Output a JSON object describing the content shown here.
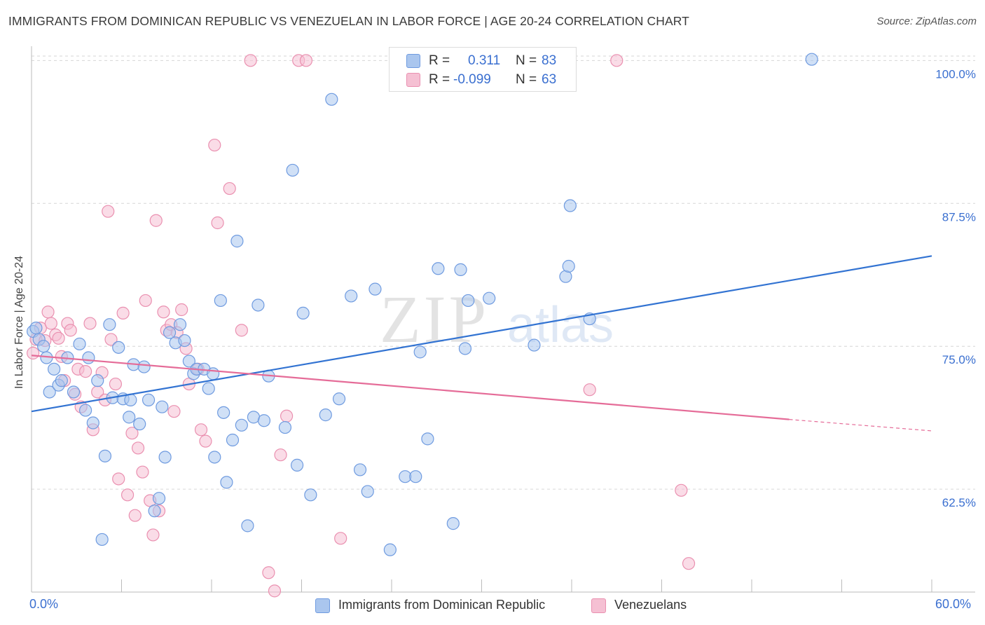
{
  "title": "IMMIGRANTS FROM DOMINICAN REPUBLIC VS VENEZUELAN IN LABOR FORCE | AGE 20-24 CORRELATION CHART",
  "source": "Source: ZipAtlas.com",
  "watermark": {
    "zip": "ZIP",
    "atlas": "atlas"
  },
  "legend": {
    "series1": {
      "r_label": "R =",
      "r_value": "0.311",
      "n_label": "N =",
      "n_value": "83"
    },
    "series2": {
      "r_label": "R =",
      "r_value": "-0.099",
      "n_label": "N =",
      "n_value": "63"
    }
  },
  "bottom_legend": {
    "series1": "Immigrants from Dominican Republic",
    "series2": "Venezuelans"
  },
  "x_axis": {
    "min_label": "0.0%",
    "max_label": "60.0%"
  },
  "colors": {
    "blue_fill": "#aac6ee",
    "blue_stroke": "#6f9be0",
    "blue_line": "#3273d2",
    "pink_fill": "#f5c0d3",
    "pink_stroke": "#ea90b0",
    "pink_line": "#e56c98",
    "axis_text": "#3a6fd0",
    "grid": "#d6d6d6"
  },
  "chart_data": {
    "type": "scatter",
    "title": "IMMIGRANTS FROM DOMINICAN REPUBLIC VS VENEZUELAN IN LABOR FORCE | AGE 20-24 CORRELATION CHART",
    "xlabel": "",
    "ylabel": "In Labor Force | Age 20-24",
    "xlim": [
      0,
      60
    ],
    "ylim": [
      53.5,
      101
    ],
    "y_ticks": [
      {
        "value": 62.5,
        "label": "62.5%"
      },
      {
        "value": 75.0,
        "label": "75.0%"
      },
      {
        "value": 87.5,
        "label": "87.5%"
      },
      {
        "value": 100.0,
        "label": "100.0%"
      }
    ],
    "series": [
      {
        "name": "Immigrants from Dominican Republic",
        "r": 0.311,
        "n": 83,
        "trend": {
          "x0": 0,
          "y0": 69.3,
          "x1": 60,
          "y1": 82.9
        },
        "points": [
          [
            0.1,
            76.3
          ],
          [
            0.3,
            76.6
          ],
          [
            0.5,
            75.6
          ],
          [
            0.8,
            75.0
          ],
          [
            1.0,
            74.0
          ],
          [
            1.2,
            71.0
          ],
          [
            1.5,
            73.0
          ],
          [
            1.8,
            71.6
          ],
          [
            2.0,
            72.0
          ],
          [
            2.4,
            74.0
          ],
          [
            2.8,
            71.0
          ],
          [
            3.2,
            75.2
          ],
          [
            3.6,
            69.4
          ],
          [
            3.8,
            74.0
          ],
          [
            4.1,
            68.3
          ],
          [
            4.4,
            72.0
          ],
          [
            4.7,
            58.1
          ],
          [
            4.9,
            65.4
          ],
          [
            5.2,
            76.9
          ],
          [
            5.4,
            70.5
          ],
          [
            5.8,
            74.9
          ],
          [
            6.1,
            70.4
          ],
          [
            6.5,
            68.8
          ],
          [
            6.6,
            70.3
          ],
          [
            6.8,
            73.4
          ],
          [
            7.2,
            68.2
          ],
          [
            7.5,
            73.2
          ],
          [
            7.8,
            70.3
          ],
          [
            8.2,
            60.6
          ],
          [
            8.5,
            61.7
          ],
          [
            8.7,
            69.7
          ],
          [
            8.9,
            65.3
          ],
          [
            9.2,
            76.2
          ],
          [
            9.6,
            75.3
          ],
          [
            9.9,
            76.9
          ],
          [
            10.2,
            75.5
          ],
          [
            10.5,
            73.7
          ],
          [
            10.8,
            72.6
          ],
          [
            11.0,
            73.0
          ],
          [
            11.5,
            73.0
          ],
          [
            11.8,
            71.3
          ],
          [
            12.1,
            72.6
          ],
          [
            12.2,
            65.3
          ],
          [
            12.6,
            79.0
          ],
          [
            12.8,
            69.2
          ],
          [
            13.0,
            63.1
          ],
          [
            13.4,
            66.8
          ],
          [
            13.7,
            84.2
          ],
          [
            14.0,
            68.1
          ],
          [
            14.4,
            59.3
          ],
          [
            14.8,
            68.8
          ],
          [
            15.1,
            78.6
          ],
          [
            15.5,
            68.5
          ],
          [
            15.8,
            72.4
          ],
          [
            16.9,
            67.9
          ],
          [
            17.4,
            90.4
          ],
          [
            17.7,
            64.6
          ],
          [
            18.1,
            77.9
          ],
          [
            18.6,
            62.0
          ],
          [
            19.6,
            69.0
          ],
          [
            20.0,
            96.6
          ],
          [
            20.5,
            70.4
          ],
          [
            21.3,
            79.4
          ],
          [
            21.9,
            64.2
          ],
          [
            22.4,
            62.3
          ],
          [
            22.9,
            80.0
          ],
          [
            23.9,
            57.2
          ],
          [
            24.9,
            63.6
          ],
          [
            25.6,
            63.6
          ],
          [
            25.9,
            74.5
          ],
          [
            26.4,
            66.9
          ],
          [
            27.1,
            81.8
          ],
          [
            28.1,
            59.5
          ],
          [
            28.6,
            81.7
          ],
          [
            28.9,
            74.8
          ],
          [
            29.1,
            79.0
          ],
          [
            30.5,
            79.2
          ],
          [
            33.5,
            75.1
          ],
          [
            35.6,
            81.1
          ],
          [
            35.8,
            82.0
          ],
          [
            35.9,
            87.3
          ],
          [
            37.2,
            77.4
          ],
          [
            52.0,
            100.1
          ]
        ]
      },
      {
        "name": "Venezuelans",
        "r": -0.099,
        "n": 63,
        "trend": {
          "x0": 0,
          "y0": 74.2,
          "x1": 50.5,
          "y1": 68.6,
          "dash_to_x": 60,
          "dash_to_y": 67.6
        },
        "points": [
          [
            0.1,
            74.4
          ],
          [
            0.3,
            75.6
          ],
          [
            0.6,
            76.6
          ],
          [
            0.9,
            75.5
          ],
          [
            1.1,
            78.0
          ],
          [
            1.3,
            77.0
          ],
          [
            1.6,
            76.0
          ],
          [
            1.8,
            75.7
          ],
          [
            2.0,
            74.1
          ],
          [
            2.2,
            72.0
          ],
          [
            2.4,
            77.0
          ],
          [
            2.6,
            76.4
          ],
          [
            2.9,
            70.8
          ],
          [
            3.1,
            73.0
          ],
          [
            3.3,
            69.7
          ],
          [
            3.6,
            72.8
          ],
          [
            3.9,
            77.0
          ],
          [
            4.1,
            67.7
          ],
          [
            4.4,
            71.0
          ],
          [
            4.7,
            72.7
          ],
          [
            4.9,
            70.3
          ],
          [
            5.1,
            86.8
          ],
          [
            5.3,
            75.6
          ],
          [
            5.6,
            71.7
          ],
          [
            5.8,
            63.4
          ],
          [
            6.1,
            77.9
          ],
          [
            6.4,
            62.0
          ],
          [
            6.7,
            67.4
          ],
          [
            6.9,
            60.2
          ],
          [
            7.1,
            66.1
          ],
          [
            7.4,
            64.0
          ],
          [
            7.6,
            79.0
          ],
          [
            7.9,
            61.5
          ],
          [
            8.1,
            58.5
          ],
          [
            8.3,
            86.0
          ],
          [
            8.5,
            60.6
          ],
          [
            8.8,
            78.0
          ],
          [
            9.0,
            76.4
          ],
          [
            9.3,
            76.9
          ],
          [
            9.5,
            69.3
          ],
          [
            9.7,
            76.2
          ],
          [
            10.0,
            78.2
          ],
          [
            10.3,
            74.8
          ],
          [
            10.5,
            71.7
          ],
          [
            11.1,
            73.0
          ],
          [
            11.3,
            67.7
          ],
          [
            11.6,
            66.7
          ],
          [
            12.2,
            92.6
          ],
          [
            12.4,
            85.8
          ],
          [
            13.2,
            88.8
          ],
          [
            14.0,
            76.4
          ],
          [
            14.6,
            100.0
          ],
          [
            15.8,
            55.2
          ],
          [
            16.2,
            53.6
          ],
          [
            16.6,
            65.5
          ],
          [
            17.0,
            68.9
          ],
          [
            17.8,
            100.0
          ],
          [
            18.3,
            100.0
          ],
          [
            20.6,
            58.2
          ],
          [
            37.2,
            71.2
          ],
          [
            39.0,
            100.0
          ],
          [
            43.3,
            62.4
          ],
          [
            43.8,
            56.0
          ]
        ]
      }
    ]
  }
}
